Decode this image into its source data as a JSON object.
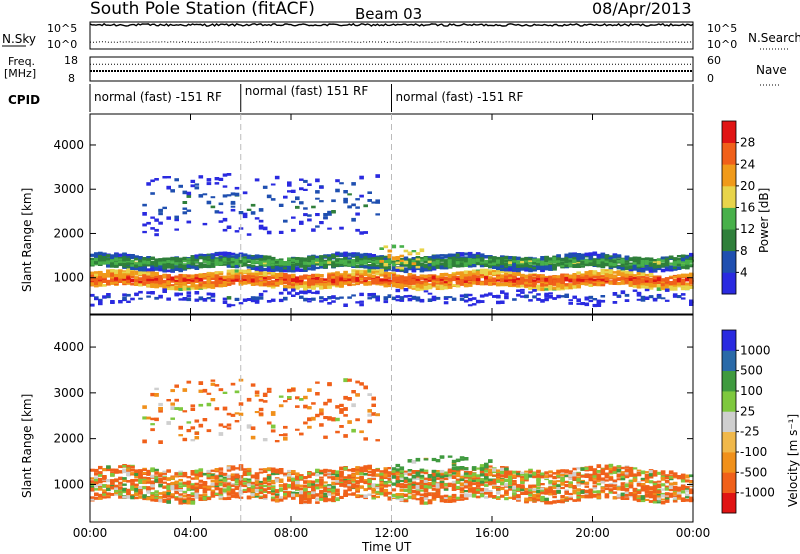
{
  "header": {
    "station": "South Pole Station (fitACF)",
    "beam": "Beam 03",
    "date": "08/Apr/2013"
  },
  "colors": {
    "power_scale": [
      "#2a2ae0",
      "#1f4fb0",
      "#2f7f3a",
      "#48b04a",
      "#e8d44a",
      "#f09a1a",
      "#f0601a",
      "#e01414"
    ],
    "velocity_scale": [
      "#e01414",
      "#f0601a",
      "#f0901a",
      "#f0b84a",
      "#cfcfcf",
      "#7ec83e",
      "#3f9a3f",
      "#2a6aa8",
      "#2a2ae0"
    ],
    "panel_border": "#000000",
    "divider": "#bbbbbb"
  },
  "chart_data": [
    {
      "type": "line",
      "panel": "noise",
      "left_label": "N.Sky",
      "left_ticks": [
        "10^5",
        "10^0"
      ],
      "right_ticks": [
        "10^5",
        "10^0"
      ],
      "right_label": "N.Search",
      "series": [
        {
          "name": "N.Sky",
          "style": "solid",
          "level_exp": 4.7
        },
        {
          "name": "N.Search",
          "style": "dotted",
          "level_exp": 1.0
        }
      ]
    },
    {
      "type": "line",
      "panel": "frequency",
      "left_label_line1": "Freq.",
      "left_label_line2": "[MHz]",
      "left_ticks": [
        "18",
        "8"
      ],
      "ylim": [
        8,
        18
      ],
      "right_ticks": [
        "60",
        "0"
      ],
      "right_label": "Nave",
      "freq_mhz": 12.0,
      "nave": 44
    },
    {
      "type": "table",
      "panel": "cpid",
      "label": "CPID",
      "segments": [
        {
          "start_hr": 0,
          "end_hr": 6,
          "label": "normal (fast) -151 RF"
        },
        {
          "start_hr": 6,
          "end_hr": 12,
          "label": "normal (fast) 151 RF"
        },
        {
          "start_hr": 12,
          "end_hr": 24,
          "label": "normal (fast) -151 RF"
        }
      ]
    },
    {
      "type": "heatmap",
      "panel": "power",
      "ylabel": "Slant Range [km]",
      "y_ticks": [
        1000,
        2000,
        3000,
        4000
      ],
      "ylim": [
        180,
        4700
      ],
      "xlim": [
        0,
        24
      ],
      "colorbar": {
        "label": "Power [dB]",
        "ticks": [
          "4",
          "8",
          "12",
          "16",
          "20",
          "24",
          "28"
        ],
        "range": [
          0,
          32
        ]
      },
      "features": [
        {
          "kind": "band",
          "start_hr": 0,
          "end_hr": 24,
          "center_km": 950,
          "width_km": 320,
          "level": 28
        },
        {
          "kind": "band",
          "start_hr": 0,
          "end_hr": 24,
          "center_km": 1350,
          "width_km": 300,
          "level": 14
        },
        {
          "kind": "patch",
          "start_hr": 2.0,
          "end_hr": 11.5,
          "center_km": 2700,
          "width_km": 1400,
          "level": 8
        },
        {
          "kind": "patch",
          "start_hr": 11.5,
          "end_hr": 13.2,
          "center_km": 1450,
          "width_km": 600,
          "level": 22
        },
        {
          "kind": "scatter",
          "start_hr": 0,
          "end_hr": 24,
          "center_km": 550,
          "width_km": 250,
          "level": 6
        }
      ]
    },
    {
      "type": "heatmap",
      "panel": "velocity",
      "ylabel": "Slant Range [km]",
      "xlabel": "Time UT",
      "y_ticks": [
        1000,
        2000,
        3000,
        4000
      ],
      "ylim": [
        180,
        4700
      ],
      "x_ticks": [
        "00:00",
        "04:00",
        "08:00",
        "12:00",
        "16:00",
        "20:00",
        "00:00"
      ],
      "xlim": [
        0,
        24
      ],
      "colorbar": {
        "label": "Velocity [m s⁻¹]",
        "ticks": [
          "1000",
          "500",
          "100",
          "25",
          "-25",
          "-100",
          "-500",
          "-1000"
        ],
        "range": [
          -1300,
          1300
        ]
      },
      "features": [
        {
          "kind": "band",
          "start_hr": 0,
          "end_hr": 24,
          "center_km": 1000,
          "width_km": 700,
          "velocity": -120
        },
        {
          "kind": "patch",
          "start_hr": 2.0,
          "end_hr": 11.5,
          "center_km": 2600,
          "width_km": 1300,
          "velocity": -150
        },
        {
          "kind": "patch",
          "start_hr": 12,
          "end_hr": 16,
          "center_km": 1300,
          "width_km": 500,
          "velocity": 200
        }
      ]
    }
  ]
}
